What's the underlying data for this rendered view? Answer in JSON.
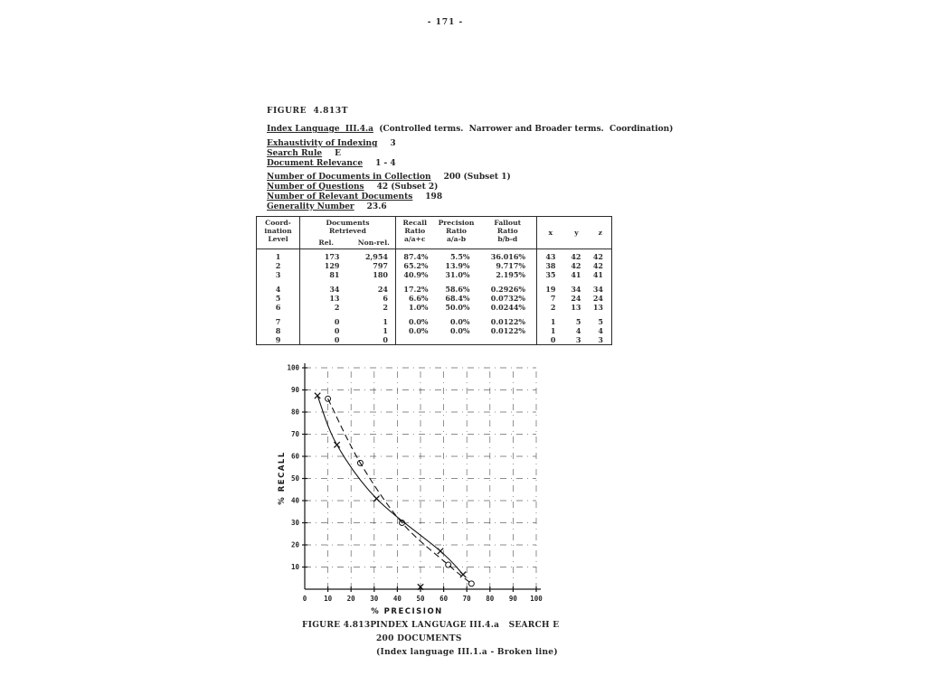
{
  "page": {
    "number": "- 171 -"
  },
  "figure_table": {
    "label": "FIGURE  4.813T"
  },
  "header": {
    "index_language": {
      "label": "Index Language  III.4.a",
      "rest": "  (Controlled terms.  Narrower and Broader terms.  Coordination)"
    },
    "params1": [
      {
        "label": "Exhaustivity of Indexing",
        "value": "3"
      },
      {
        "label": "Search Rule",
        "value": "E"
      },
      {
        "label": "Document Relevance",
        "value": "1 - 4"
      }
    ],
    "params2": [
      {
        "label": "Number of Documents in Collection",
        "value": "200 (Subset 1)"
      },
      {
        "label": "Number of Questions",
        "value": "42 (Subset 2)"
      },
      {
        "label": "Number of Relevant Documents",
        "value": "198"
      },
      {
        "label": "Generality Number",
        "value": "23.6"
      }
    ]
  },
  "table": {
    "col_headers": {
      "coordination_level": "Coord-\nination\nLevel",
      "documents_retrieved": "Documents\nRetrieved",
      "rel": "Rel.",
      "non_rel": "Non-rel.",
      "recall": "Recall\nRatio\na/a+c",
      "precision": "Precision\nRatio\na/a-b",
      "fallout": "Fallout\nRatio\nb/b-d",
      "x": "x",
      "y": "y",
      "z": "z"
    },
    "rows": [
      [
        "1",
        "173",
        "2,954",
        "87.4%",
        "5.5%",
        "36.016%",
        "43",
        "42",
        "42"
      ],
      [
        "2",
        "129",
        "797",
        "65.2%",
        "13.9%",
        "9.717%",
        "38",
        "42",
        "42"
      ],
      [
        "3",
        "81",
        "180",
        "40.9%",
        "31.0%",
        "2.195%",
        "35",
        "41",
        "41"
      ],
      [
        "4",
        "34",
        "24",
        "17.2%",
        "58.6%",
        "0.2926%",
        "19",
        "34",
        "34"
      ],
      [
        "5",
        "13",
        "6",
        "6.6%",
        "68.4%",
        "0.0732%",
        "7",
        "24",
        "24"
      ],
      [
        "6",
        "2",
        "2",
        "1.0%",
        "50.0%",
        "0.0244%",
        "2",
        "13",
        "13"
      ],
      [
        "7",
        "0",
        "1",
        "0.0%",
        "0.0%",
        "0.0122%",
        "1",
        "5",
        "5"
      ],
      [
        "8",
        "0",
        "1",
        "0.0%",
        "0.0%",
        "0.0122%",
        "1",
        "4",
        "4"
      ],
      [
        "9",
        "0",
        "0",
        "",
        "",
        "",
        "0",
        "3",
        "3"
      ]
    ]
  },
  "chart_data": {
    "type": "line",
    "title": "",
    "xlabel": "% PRECISION",
    "ylabel": "% RECALL",
    "xlim": [
      0,
      100
    ],
    "ylim": [
      0,
      100
    ],
    "xticks": [
      0,
      10,
      20,
      30,
      40,
      50,
      60,
      70,
      80,
      90,
      100
    ],
    "yticks": [
      0,
      10,
      20,
      30,
      40,
      50,
      60,
      70,
      80,
      90,
      100
    ],
    "grid": "dash-dot both directions",
    "legend_position": "none (explained in caption)",
    "series": [
      {
        "name": "Index Language III.4.a Search E (solid line, X markers)",
        "marker": "x",
        "line": "solid",
        "points": [
          [
            5.5,
            87.4
          ],
          [
            13.9,
            65.2
          ],
          [
            31.0,
            40.9
          ],
          [
            58.6,
            17.2
          ],
          [
            68.4,
            6.6
          ]
        ]
      },
      {
        "name": "Index Language III.1.a (broken line, O markers)",
        "marker": "o",
        "line": "dashed",
        "points": [
          [
            10,
            86
          ],
          [
            24,
            57
          ],
          [
            42,
            30
          ],
          [
            62,
            11
          ],
          [
            72,
            2.5
          ]
        ]
      }
    ],
    "isolated_points": [
      {
        "marker": "x",
        "x": 50,
        "y": 1
      }
    ]
  },
  "caption": {
    "figure_label": "FIGURE 4.813P",
    "line1": "INDEX LANGUAGE III.4.a   SEARCH E",
    "line2": "200 DOCUMENTS",
    "line3": "(Index language III.1.a - Broken line)"
  }
}
